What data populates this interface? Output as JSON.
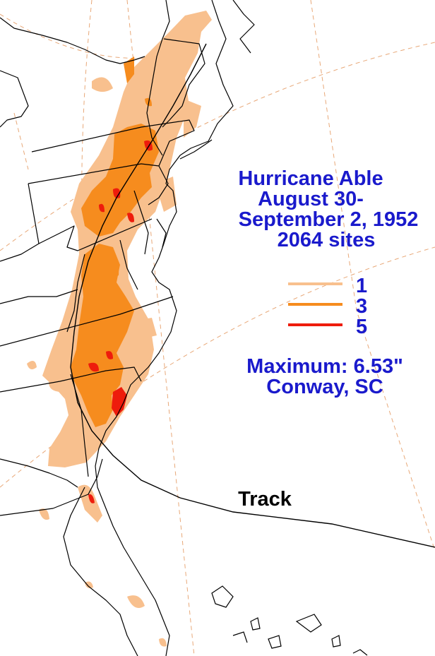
{
  "title": {
    "line1": "Hurricane Able",
    "line2": "August 30-",
    "line3": "September 2, 1952",
    "line4": "2064 sites"
  },
  "legend": [
    {
      "label": "1",
      "color": "#f8c08e"
    },
    {
      "label": "3",
      "color": "#f68c1e"
    },
    {
      "label": "5",
      "color": "#ee1c0c"
    }
  ],
  "maximum": {
    "line1": "Maximum:  6.53\"",
    "line2": "Conway, SC"
  },
  "track": {
    "label": "Track"
  },
  "colors": {
    "text": "#1a1acc",
    "graticule": "#e8a878",
    "boundaries": "#000000"
  }
}
